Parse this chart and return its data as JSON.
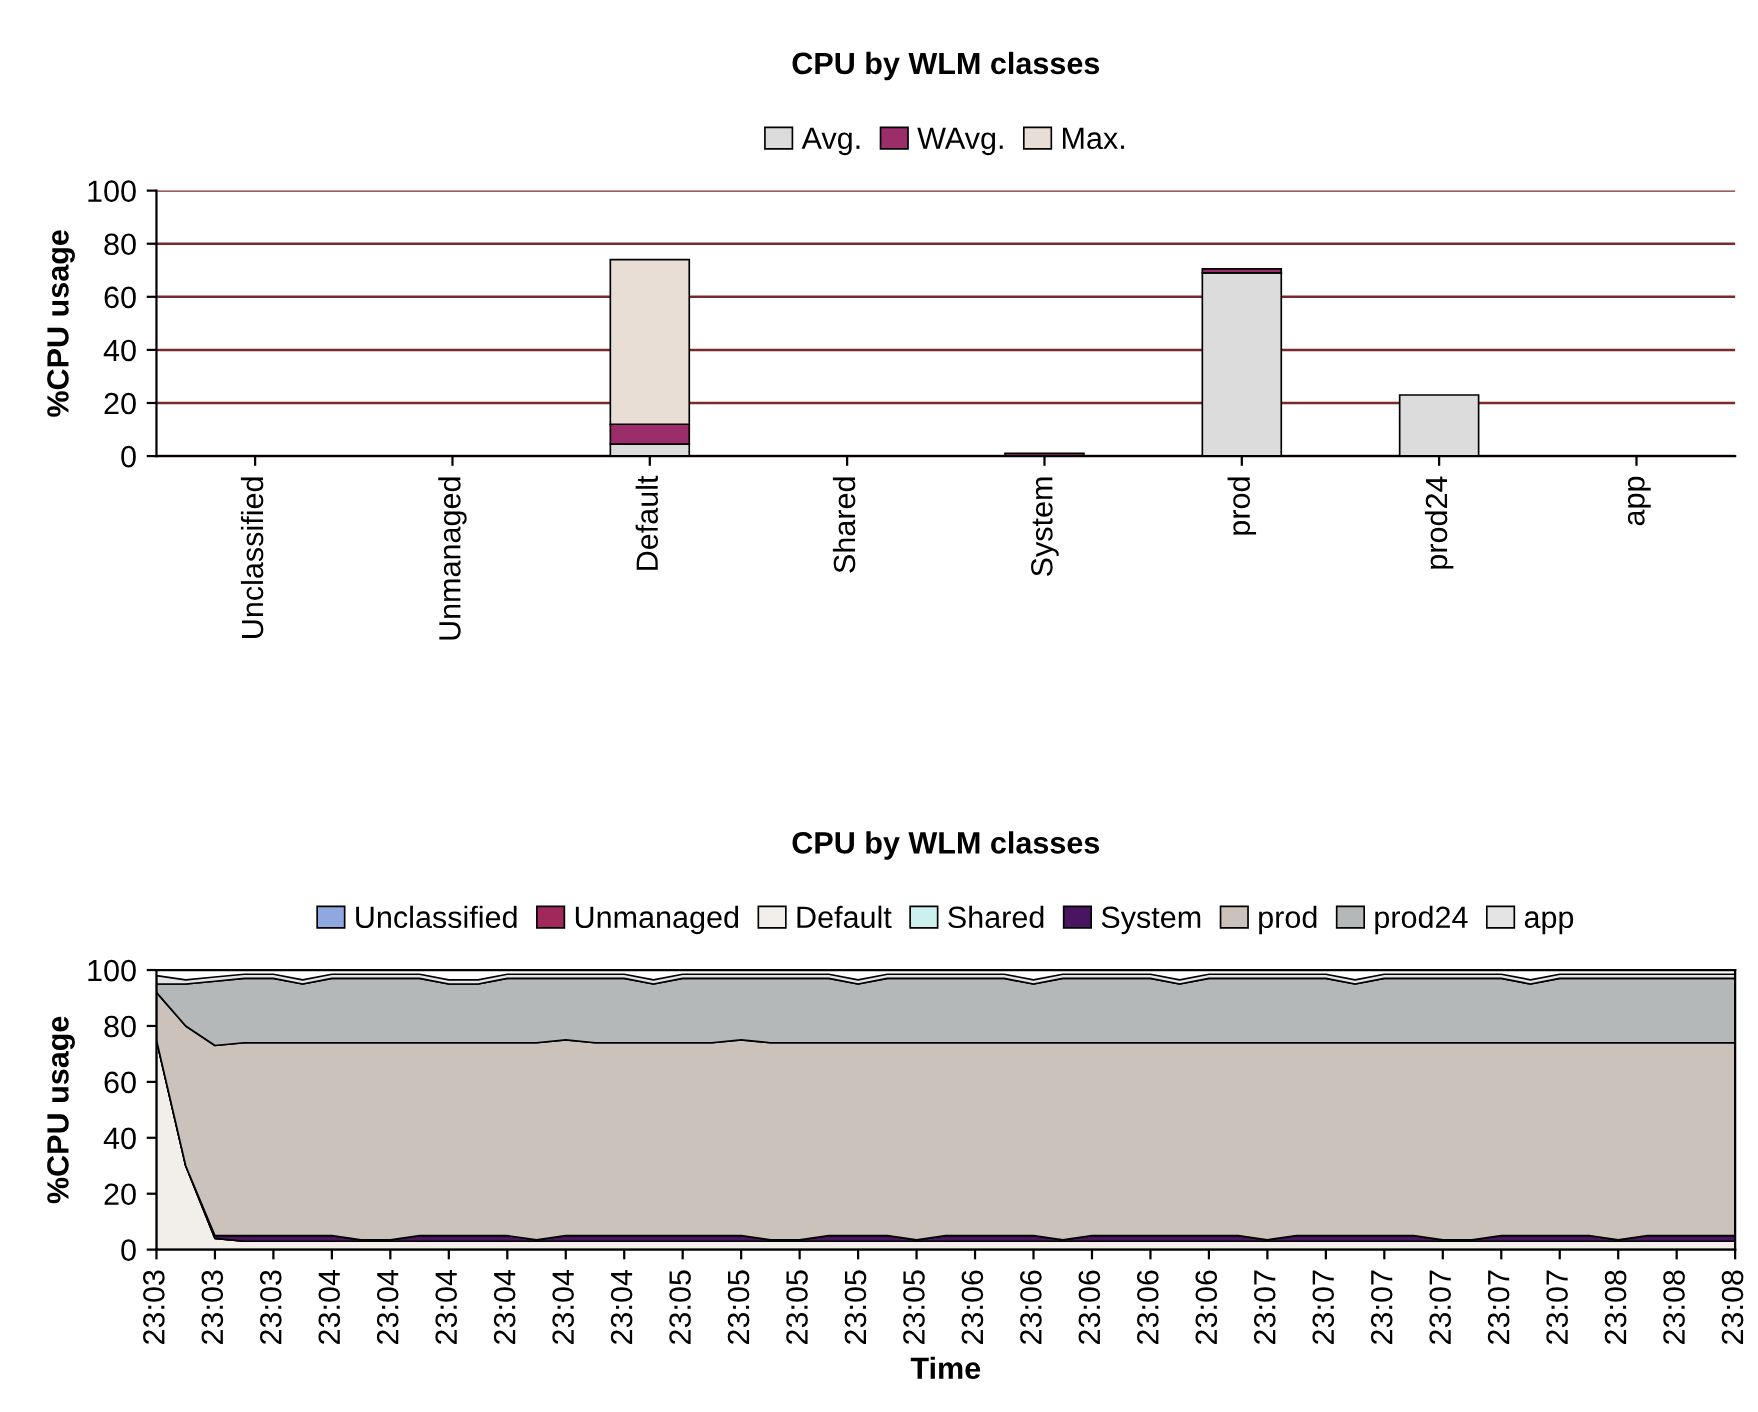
{
  "chart_data": [
    {
      "type": "bar",
      "title": "CPU by WLM classes",
      "ylabel": "%CPU usage",
      "stacked": true,
      "legend": "top",
      "grid": "y",
      "categories": [
        "Unclassified",
        "Unmanaged",
        "Default",
        "Shared",
        "System",
        "prod",
        "prod24",
        "app"
      ],
      "series": [
        {
          "name": "Avg.",
          "color": "#dcdcdc",
          "values": [
            0,
            0,
            4.5,
            0,
            0,
            69,
            23,
            0
          ]
        },
        {
          "name": "WAvg.",
          "color": "#9b2d6b",
          "values": [
            0,
            0,
            7.5,
            0,
            1,
            1.5,
            0,
            0
          ]
        },
        {
          "name": "Max.",
          "color": "#e8ded6",
          "values": [
            0,
            0,
            62,
            0,
            0,
            0,
            0,
            0
          ]
        }
      ],
      "ylim": [
        0,
        100
      ],
      "yticks": [
        0,
        20,
        40,
        60,
        80,
        100
      ]
    },
    {
      "type": "area",
      "title": "CPU by WLM classes",
      "xlabel": "Time",
      "ylabel": "%CPU usage",
      "stacked": true,
      "legend": "top",
      "categories": [
        "23:03",
        null,
        "23:03",
        null,
        "23:03",
        null,
        "23:04",
        null,
        "23:04",
        null,
        "23:04",
        null,
        "23:04",
        null,
        "23:04",
        null,
        "23:04",
        null,
        "23:05",
        null,
        "23:05",
        null,
        "23:05",
        null,
        "23:05",
        null,
        "23:05",
        null,
        "23:06",
        null,
        "23:06",
        null,
        "23:06",
        null,
        "23:06",
        null,
        "23:06",
        null,
        "23:07",
        null,
        "23:07",
        null,
        "23:07",
        null,
        "23:07",
        null,
        "23:07",
        null,
        "23:07",
        null,
        "23:08",
        null,
        "23:08",
        null,
        "23:08"
      ],
      "series": [
        {
          "name": "Unclassified",
          "color": "#8fa8e0",
          "values": [
            null,
            null,
            null,
            null,
            null,
            null,
            null,
            null,
            null,
            null,
            null,
            null,
            null,
            null,
            null,
            null,
            null,
            null,
            null,
            null,
            null,
            null,
            null,
            null,
            null,
            null,
            null,
            null,
            null,
            null,
            null,
            null,
            null,
            null,
            null,
            null,
            null,
            null,
            null,
            null,
            null,
            null,
            null,
            null,
            null,
            null,
            null,
            null,
            null,
            null,
            null,
            null,
            null,
            null,
            null
          ]
        },
        {
          "name": "Unmanaged",
          "color": "#a0285a",
          "values": [
            null,
            null,
            null,
            null,
            null,
            null,
            null,
            null,
            null,
            null,
            null,
            null,
            null,
            null,
            null,
            null,
            null,
            null,
            null,
            null,
            null,
            null,
            null,
            null,
            null,
            null,
            null,
            null,
            null,
            null,
            null,
            null,
            null,
            null,
            null,
            null,
            null,
            null,
            null,
            null,
            null,
            null,
            null,
            null,
            null,
            null,
            null,
            null,
            null,
            null,
            null,
            null,
            null,
            null,
            null
          ]
        },
        {
          "name": "Default",
          "color": "#f2eee9",
          "values": [
            75,
            30,
            4,
            3,
            3,
            3,
            3,
            3,
            3,
            3,
            3,
            3,
            3,
            3,
            3,
            3,
            3,
            3,
            3,
            3,
            3,
            3,
            3,
            3,
            3,
            3,
            3,
            3,
            3,
            3,
            3,
            3,
            3,
            3,
            3,
            3,
            3,
            3,
            3,
            3,
            3,
            3,
            3,
            3,
            3,
            3,
            3,
            3,
            3,
            3,
            3,
            3,
            3,
            3,
            3
          ]
        },
        {
          "name": "Shared",
          "color": "#ccf0f0",
          "values": [
            null,
            null,
            null,
            null,
            null,
            null,
            null,
            null,
            null,
            null,
            null,
            null,
            null,
            null,
            null,
            null,
            null,
            null,
            null,
            null,
            null,
            null,
            null,
            null,
            null,
            null,
            null,
            null,
            null,
            null,
            null,
            null,
            null,
            null,
            null,
            null,
            null,
            null,
            null,
            null,
            null,
            null,
            null,
            null,
            null,
            null,
            null,
            null,
            null,
            null,
            null,
            null,
            null,
            null,
            null
          ]
        },
        {
          "name": "System",
          "color": "#4a1560",
          "values": [
            0,
            0,
            1,
            2,
            2,
            2,
            2,
            0.5,
            0.5,
            2,
            2,
            2,
            2,
            0.5,
            2,
            2,
            2,
            2,
            2,
            2,
            2,
            0.5,
            0.5,
            2,
            2,
            2,
            0.5,
            2,
            2,
            2,
            2,
            0.5,
            2,
            2,
            2,
            2,
            2,
            2,
            0.5,
            2,
            2,
            2,
            2,
            2,
            0.5,
            0.5,
            2,
            2,
            2,
            2,
            0.5,
            2,
            2,
            2,
            2
          ]
        },
        {
          "name": "prod",
          "color": "#cbc2bc",
          "values": [
            17,
            50,
            68,
            69,
            69,
            69,
            69,
            70.5,
            70.5,
            69,
            69,
            69,
            69,
            70.5,
            70,
            69,
            69,
            69,
            69,
            69,
            70,
            70.5,
            70.5,
            69,
            69,
            69,
            70.5,
            69,
            69,
            69,
            69,
            70.5,
            69,
            69,
            69,
            69,
            69,
            69,
            70.5,
            69,
            69,
            69,
            69,
            69,
            70.5,
            70.5,
            69,
            69,
            69,
            69,
            70.5,
            69,
            69,
            69,
            69
          ]
        },
        {
          "name": "prod24",
          "color": "#b4b8b8",
          "values": [
            3,
            15,
            23,
            23,
            23,
            21,
            23,
            23,
            23,
            23,
            21,
            21,
            23,
            23,
            22,
            23,
            23,
            21,
            23,
            23,
            22,
            23,
            23,
            23,
            21,
            23,
            23,
            23,
            23,
            23,
            21,
            23,
            23,
            23,
            23,
            21,
            23,
            23,
            23,
            23,
            23,
            21,
            23,
            23,
            23,
            23,
            23,
            21,
            23,
            23,
            23,
            23,
            23,
            23,
            23
          ]
        },
        {
          "name": "app",
          "color": "#e4e4e4",
          "values": [
            3,
            1.5,
            1.5,
            1.5,
            1.5,
            1.5,
            1.5,
            1.5,
            1.5,
            1.5,
            1.5,
            1.5,
            1.5,
            1.5,
            1.5,
            1.5,
            1.5,
            1.5,
            1.5,
            1.5,
            1.5,
            1.5,
            1.5,
            1.5,
            1.5,
            1.5,
            1.5,
            1.5,
            1.5,
            1.5,
            1.5,
            1.5,
            1.5,
            1.5,
            1.5,
            1.5,
            1.5,
            1.5,
            1.5,
            1.5,
            1.5,
            1.5,
            1.5,
            1.5,
            1.5,
            1.5,
            1.5,
            1.5,
            1.5,
            1.5,
            1.5,
            1.5,
            1.5,
            1.5,
            1.5
          ]
        }
      ],
      "ylim": [
        0,
        100
      ],
      "yticks": [
        0,
        20,
        40,
        60,
        80,
        100
      ]
    }
  ]
}
